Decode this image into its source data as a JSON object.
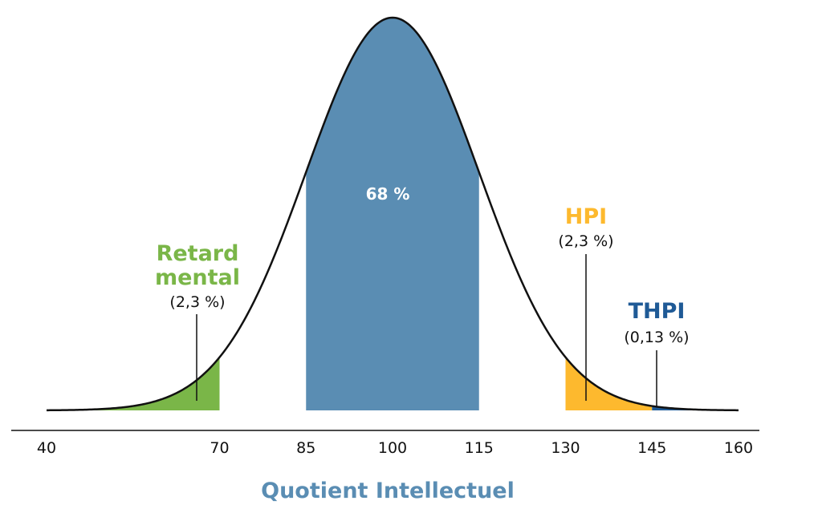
{
  "chart_data": {
    "type": "area",
    "distribution": "normal",
    "mean": 100,
    "sd": 15,
    "xlabel": "Quotient Intellectuel",
    "xlim": [
      40,
      160
    ],
    "xticks": [
      40,
      70,
      85,
      100,
      115,
      130,
      145,
      160
    ],
    "regions": [
      {
        "from": 40,
        "to": 70,
        "color": "#7ab648",
        "label_lines": [
          "Retard",
          "mental"
        ],
        "percent": "(2,3 %)"
      },
      {
        "from": 85,
        "to": 115,
        "color": "#5a8db3",
        "percent": "68 %"
      },
      {
        "from": 130,
        "to": 145,
        "color": "#fdb92e",
        "label_lines": [
          "HPI"
        ],
        "percent": "(2,3 %)"
      },
      {
        "from": 145,
        "to": 160,
        "color": "#1f5a96",
        "label_lines": [
          "THPI"
        ],
        "percent": "(0,13 %)"
      }
    ],
    "colors": {
      "curve": "#111111",
      "xlabel": "#5a8db3"
    }
  }
}
